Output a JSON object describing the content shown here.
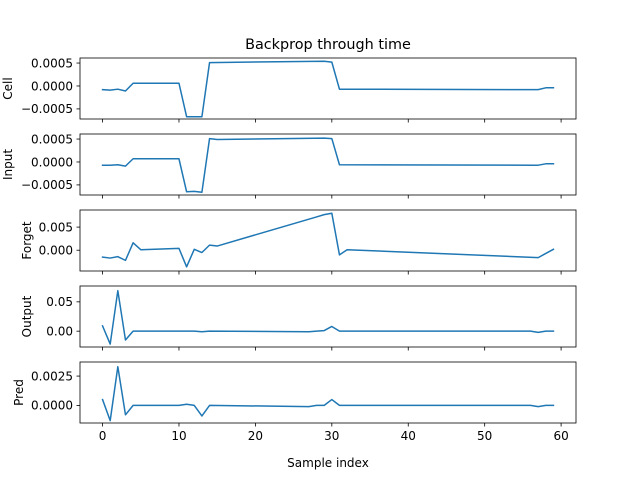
{
  "figure": {
    "title": "Backprop through time",
    "xlabel": "Sample index"
  },
  "chart_data": [
    {
      "type": "line",
      "ylabel": "Cell",
      "x": [
        0,
        1,
        2,
        3,
        4,
        10,
        11,
        12,
        13,
        14,
        29,
        30,
        31,
        57,
        58,
        59
      ],
      "values": [
        -8e-05,
        -9e-05,
        -7e-05,
        -0.00011,
        6e-05,
        6e-05,
        -0.00067,
        -0.00067,
        -0.00067,
        0.00051,
        0.00054,
        0.00052,
        -7e-05,
        -8e-05,
        -4e-05,
        -4e-05
      ],
      "ylim": [
        -0.00072,
        0.00061
      ],
      "yticks": [
        -0.0005,
        0.0,
        0.0005
      ],
      "ytick_labels": [
        "−0.0005",
        "0.0000",
        "0.0005"
      ],
      "color": "#1f77b4"
    },
    {
      "type": "line",
      "ylabel": "Input",
      "x": [
        0,
        1,
        2,
        3,
        4,
        10,
        11,
        12,
        13,
        14,
        15,
        29,
        30,
        31,
        57,
        58,
        59
      ],
      "values": [
        -7e-05,
        -7e-05,
        -6e-05,
        -9e-05,
        7e-05,
        7e-05,
        -0.00065,
        -0.00064,
        -0.00066,
        0.00051,
        0.00049,
        0.00052,
        0.00051,
        -6e-05,
        -7e-05,
        -4e-05,
        -4e-05
      ],
      "ylim": [
        -0.00072,
        0.00061
      ],
      "yticks": [
        -0.0005,
        0.0,
        0.0005
      ],
      "ytick_labels": [
        "−0.0005",
        "0.0000",
        "0.0005"
      ],
      "color": "#1f77b4"
    },
    {
      "type": "line",
      "ylabel": "Forget",
      "x": [
        0,
        1,
        2,
        3,
        4,
        5,
        10,
        11,
        12,
        13,
        14,
        15,
        28,
        29,
        30,
        31,
        32,
        57,
        58,
        59
      ],
      "values": [
        -0.0015,
        -0.0017,
        -0.0014,
        -0.0022,
        0.0016,
        0.0001,
        0.0004,
        -0.0036,
        0.0002,
        -0.0005,
        0.0011,
        0.0009,
        0.0072,
        0.0077,
        0.008,
        -0.001,
        0.0001,
        -0.0016,
        -0.0007,
        0.0002
      ],
      "ylim": [
        -0.0045,
        0.0087
      ],
      "yticks": [
        0.0,
        0.005
      ],
      "ytick_labels": [
        "0.000",
        "0.005"
      ],
      "color": "#1f77b4"
    },
    {
      "type": "line",
      "ylabel": "Output",
      "x": [
        0,
        1,
        2,
        3,
        4,
        10,
        12,
        13,
        14,
        27,
        28,
        29,
        30,
        31,
        55,
        56,
        57,
        58,
        59
      ],
      "values": [
        0.009,
        -0.022,
        0.069,
        -0.015,
        0.0,
        0.0,
        0.0,
        -0.001,
        0.0,
        -0.001,
        0.0,
        0.001,
        0.008,
        0.0,
        0.0,
        0.0,
        -0.002,
        0.0,
        0.0
      ],
      "ylim": [
        -0.027,
        0.077
      ],
      "yticks": [
        0.0,
        0.05
      ],
      "ytick_labels": [
        "0.00",
        "0.05"
      ],
      "color": "#1f77b4"
    },
    {
      "type": "line",
      "ylabel": "Pred",
      "x": [
        0,
        1,
        2,
        3,
        4,
        10,
        11,
        12,
        13,
        14,
        27,
        28,
        29,
        30,
        31,
        55,
        56,
        57,
        58,
        59
      ],
      "values": [
        0.0005,
        -0.0013,
        0.0033,
        -0.0008,
        0.0,
        0.0,
        0.0001,
        0.0,
        -0.0009,
        0.0,
        -0.0001,
        0.0,
        0.0,
        0.0005,
        0.0,
        0.0,
        0.0,
        -0.0001,
        0.0,
        0.0
      ],
      "ylim": [
        -0.0015,
        0.0037
      ],
      "yticks": [
        0.0,
        0.0025
      ],
      "ytick_labels": [
        "0.0000",
        "0.0025"
      ],
      "color": "#1f77b4"
    }
  ],
  "xaxis": {
    "xlim": [
      -2.95,
      61.95
    ],
    "ticks": [
      0,
      10,
      20,
      30,
      40,
      50,
      60
    ],
    "tick_labels": [
      "0",
      "10",
      "20",
      "30",
      "40",
      "50",
      "60"
    ]
  }
}
